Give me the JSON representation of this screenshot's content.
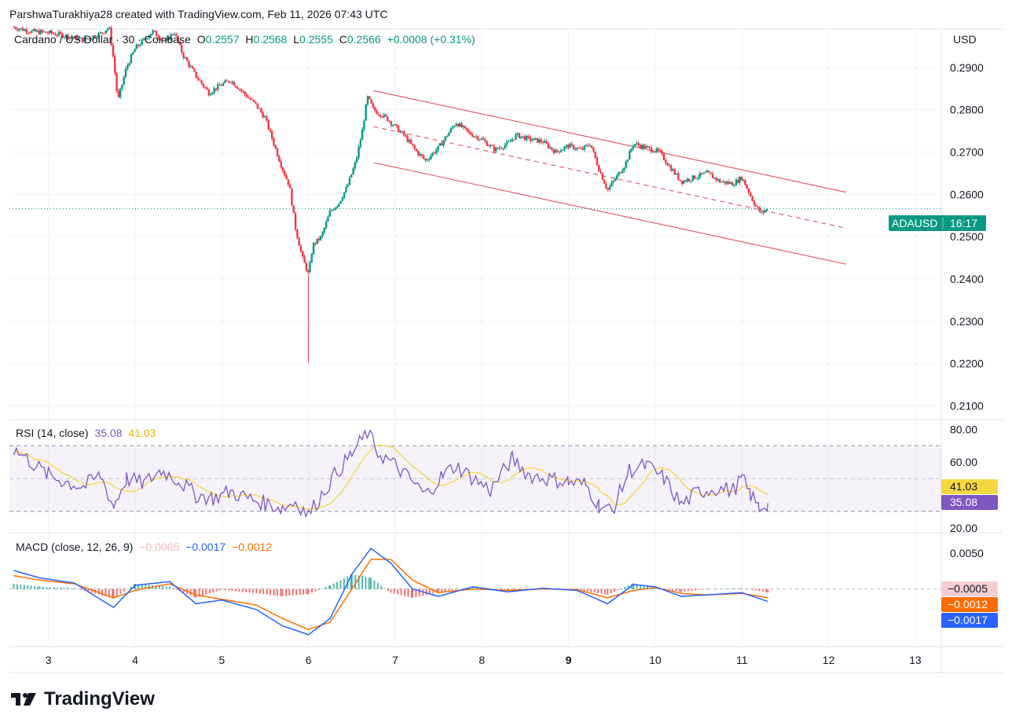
{
  "header": {
    "attribution": "ParshwaTurakhiya28 created with TradingView.com, Feb 11, 2026 07:43 UTC"
  },
  "legend": {
    "symbol": "Cardano / US Dollar · 30 · Coinbase",
    "open_label": "O",
    "open": "0.2557",
    "high_label": "H",
    "high": "0.2568",
    "low_label": "L",
    "low": "0.2555",
    "close_label": "C",
    "close": "0.2566",
    "change": "+0.0008 (+0.31%)"
  },
  "price_axis": {
    "currency": "USD",
    "ticks": [
      "0.2900",
      "0.2800",
      "0.2700",
      "0.2600",
      "0.2500",
      "0.2400",
      "0.2300",
      "0.2200",
      "0.2100"
    ]
  },
  "price_tag": {
    "symbol": "ADAUSD",
    "countdown": "16:17"
  },
  "rsi": {
    "label": "RSI (14, close)",
    "value": "35.08",
    "ma_value": "41.03",
    "ticks": [
      "80.00",
      "60.00",
      "20.00"
    ]
  },
  "macd": {
    "label": "MACD (close, 12, 26, 9)",
    "histogram": "−0.0005",
    "macd": "−0.0017",
    "signal": "−0.0012",
    "ticks": [
      "0.0050"
    ],
    "tag_histogram": "−0.0005",
    "tag_signal": "−0.0012",
    "tag_macd": "−0.0017"
  },
  "time_axis": [
    "3",
    "4",
    "5",
    "6",
    "7",
    "8",
    "9",
    "10",
    "11",
    "12",
    "13"
  ],
  "footer": {
    "brand": "TradingView"
  },
  "colors": {
    "up": "#089981",
    "down": "#f23645",
    "rsi_line": "#7e57c2",
    "rsi_ma": "#f5d742",
    "macd_line": "#2962ff",
    "signal_line": "#ff6d00",
    "channel": "#e06070",
    "price_tag_bg": "#089981"
  },
  "chart_data": {
    "type": "candlestick",
    "title": "Cardano / US Dollar · 30 · Coinbase",
    "xlabel": "",
    "ylabel": "USD",
    "ylim": [
      0.2075,
      0.2985
    ],
    "x_ticks": [
      "3",
      "4",
      "5",
      "6",
      "7",
      "8",
      "9",
      "10",
      "11",
      "12",
      "13"
    ],
    "x_range": [
      2.55,
      13.3
    ],
    "last_price": 0.2566,
    "price_path": [
      [
        2.6,
        0.2995
      ],
      [
        2.8,
        0.2985
      ],
      [
        3.0,
        0.2982
      ],
      [
        3.2,
        0.2975
      ],
      [
        3.4,
        0.2965
      ],
      [
        3.6,
        0.298
      ],
      [
        3.7,
        0.2995
      ],
      [
        3.75,
        0.292
      ],
      [
        3.8,
        0.282
      ],
      [
        3.9,
        0.29
      ],
      [
        4.0,
        0.2945
      ],
      [
        4.1,
        0.2965
      ],
      [
        4.2,
        0.2985
      ],
      [
        4.35,
        0.296
      ],
      [
        4.45,
        0.2985
      ],
      [
        4.55,
        0.293
      ],
      [
        4.7,
        0.288
      ],
      [
        4.85,
        0.284
      ],
      [
        5.0,
        0.286
      ],
      [
        5.1,
        0.287
      ],
      [
        5.25,
        0.284
      ],
      [
        5.4,
        0.281
      ],
      [
        5.5,
        0.278
      ],
      [
        5.6,
        0.272
      ],
      [
        5.7,
        0.266
      ],
      [
        5.78,
        0.262
      ],
      [
        5.85,
        0.252
      ],
      [
        5.93,
        0.245
      ],
      [
        6.0,
        0.241
      ],
      [
        6.05,
        0.248
      ],
      [
        6.15,
        0.25
      ],
      [
        6.25,
        0.256
      ],
      [
        6.35,
        0.258
      ],
      [
        6.45,
        0.262
      ],
      [
        6.55,
        0.268
      ],
      [
        6.62,
        0.275
      ],
      [
        6.68,
        0.283
      ],
      [
        6.75,
        0.28
      ],
      [
        6.9,
        0.278
      ],
      [
        7.1,
        0.274
      ],
      [
        7.25,
        0.27
      ],
      [
        7.35,
        0.268
      ],
      [
        7.5,
        0.271
      ],
      [
        7.6,
        0.274
      ],
      [
        7.7,
        0.277
      ],
      [
        7.85,
        0.2745
      ],
      [
        8.0,
        0.273
      ],
      [
        8.15,
        0.2705
      ],
      [
        8.3,
        0.272
      ],
      [
        8.4,
        0.274
      ],
      [
        8.55,
        0.273
      ],
      [
        8.7,
        0.2725
      ],
      [
        8.85,
        0.27
      ],
      [
        9.0,
        0.2715
      ],
      [
        9.15,
        0.2705
      ],
      [
        9.25,
        0.272
      ],
      [
        9.35,
        0.266
      ],
      [
        9.45,
        0.261
      ],
      [
        9.55,
        0.264
      ],
      [
        9.65,
        0.267
      ],
      [
        9.75,
        0.272
      ],
      [
        9.9,
        0.271
      ],
      [
        10.05,
        0.27
      ],
      [
        10.15,
        0.267
      ],
      [
        10.3,
        0.263
      ],
      [
        10.45,
        0.264
      ],
      [
        10.6,
        0.265
      ],
      [
        10.75,
        0.263
      ],
      [
        10.9,
        0.2625
      ],
      [
        11.0,
        0.264
      ],
      [
        11.07,
        0.261
      ],
      [
        11.15,
        0.2575
      ],
      [
        11.22,
        0.2555
      ],
      [
        11.3,
        0.2566
      ]
    ],
    "channel": {
      "upper": [
        [
          6.75,
          0.2845
        ],
        [
          12.2,
          0.2605
        ]
      ],
      "lower": [
        [
          6.75,
          0.2675
        ],
        [
          12.2,
          0.2435
        ]
      ],
      "median": [
        [
          6.75,
          0.276
        ],
        [
          12.2,
          0.252
        ]
      ]
    },
    "rsi": {
      "ylim": [
        18,
        84
      ],
      "upper_band": 70,
      "middle_band": 50,
      "lower_band": 30,
      "last": 35.08,
      "ma_last": 41.03,
      "path": [
        [
          2.6,
          68
        ],
        [
          2.8,
          60
        ],
        [
          3.0,
          52
        ],
        [
          3.2,
          48
        ],
        [
          3.4,
          45
        ],
        [
          3.6,
          52
        ],
        [
          3.75,
          33
        ],
        [
          3.9,
          50
        ],
        [
          4.1,
          47
        ],
        [
          4.3,
          55
        ],
        [
          4.5,
          49
        ],
        [
          4.7,
          40
        ],
        [
          4.9,
          38
        ],
        [
          5.1,
          42
        ],
        [
          5.3,
          38
        ],
        [
          5.5,
          35
        ],
        [
          5.7,
          32
        ],
        [
          5.85,
          36
        ],
        [
          6.0,
          28
        ],
        [
          6.15,
          40
        ],
        [
          6.3,
          52
        ],
        [
          6.5,
          65
        ],
        [
          6.68,
          78
        ],
        [
          6.8,
          66
        ],
        [
          7.0,
          58
        ],
        [
          7.2,
          48
        ],
        [
          7.35,
          40
        ],
        [
          7.55,
          52
        ],
        [
          7.7,
          58
        ],
        [
          7.9,
          50
        ],
        [
          8.1,
          43
        ],
        [
          8.35,
          62
        ],
        [
          8.55,
          52
        ],
        [
          8.75,
          50
        ],
        [
          9.0,
          48
        ],
        [
          9.2,
          46
        ],
        [
          9.35,
          34
        ],
        [
          9.5,
          30
        ],
        [
          9.7,
          55
        ],
        [
          9.9,
          58
        ],
        [
          10.1,
          50
        ],
        [
          10.3,
          34
        ],
        [
          10.5,
          42
        ],
        [
          10.7,
          44
        ],
        [
          10.9,
          43
        ],
        [
          11.0,
          50
        ],
        [
          11.1,
          40
        ],
        [
          11.2,
          32
        ],
        [
          11.3,
          35.08
        ]
      ]
    },
    "macd": {
      "ylim": [
        -0.0075,
        0.0072
      ],
      "last_macd": -0.0017,
      "last_signal": -0.0012,
      "last_histogram": -0.0005,
      "macd_path": [
        [
          2.6,
          0.0025
        ],
        [
          2.9,
          0.0015
        ],
        [
          3.3,
          0.0008
        ],
        [
          3.75,
          -0.0025
        ],
        [
          4.0,
          0.0005
        ],
        [
          4.4,
          0.001
        ],
        [
          4.7,
          -0.002
        ],
        [
          5.0,
          -0.0015
        ],
        [
          5.4,
          -0.0028
        ],
        [
          5.7,
          -0.005
        ],
        [
          6.0,
          -0.0062
        ],
        [
          6.25,
          -0.004
        ],
        [
          6.5,
          0.002
        ],
        [
          6.72,
          0.0055
        ],
        [
          6.95,
          0.0035
        ],
        [
          7.2,
          0.0
        ],
        [
          7.5,
          -0.001
        ],
        [
          7.9,
          0.0003
        ],
        [
          8.3,
          -0.0004
        ],
        [
          8.7,
          0.0001
        ],
        [
          9.1,
          -0.0002
        ],
        [
          9.45,
          -0.002
        ],
        [
          9.75,
          0.0006
        ],
        [
          10.0,
          0.0003
        ],
        [
          10.3,
          -0.001
        ],
        [
          10.6,
          -0.0008
        ],
        [
          11.0,
          -0.0005
        ],
        [
          11.3,
          -0.0017
        ]
      ],
      "signal_path": [
        [
          2.6,
          0.0018
        ],
        [
          2.9,
          0.0012
        ],
        [
          3.3,
          0.0007
        ],
        [
          3.75,
          -0.0012
        ],
        [
          4.0,
          -0.0002
        ],
        [
          4.4,
          0.0007
        ],
        [
          4.7,
          -0.0008
        ],
        [
          5.0,
          -0.0014
        ],
        [
          5.4,
          -0.0022
        ],
        [
          5.7,
          -0.004
        ],
        [
          6.0,
          -0.0055
        ],
        [
          6.25,
          -0.0045
        ],
        [
          6.5,
          0.0
        ],
        [
          6.72,
          0.004
        ],
        [
          6.95,
          0.004
        ],
        [
          7.2,
          0.0012
        ],
        [
          7.5,
          -0.0005
        ],
        [
          7.9,
          0.0
        ],
        [
          8.3,
          -0.0002
        ],
        [
          8.7,
          0.0
        ],
        [
          9.1,
          -0.0001
        ],
        [
          9.45,
          -0.0012
        ],
        [
          9.75,
          -0.0002
        ],
        [
          10.0,
          0.0002
        ],
        [
          10.3,
          -0.0006
        ],
        [
          10.6,
          -0.0008
        ],
        [
          11.0,
          -0.0006
        ],
        [
          11.3,
          -0.0012
        ]
      ]
    }
  }
}
